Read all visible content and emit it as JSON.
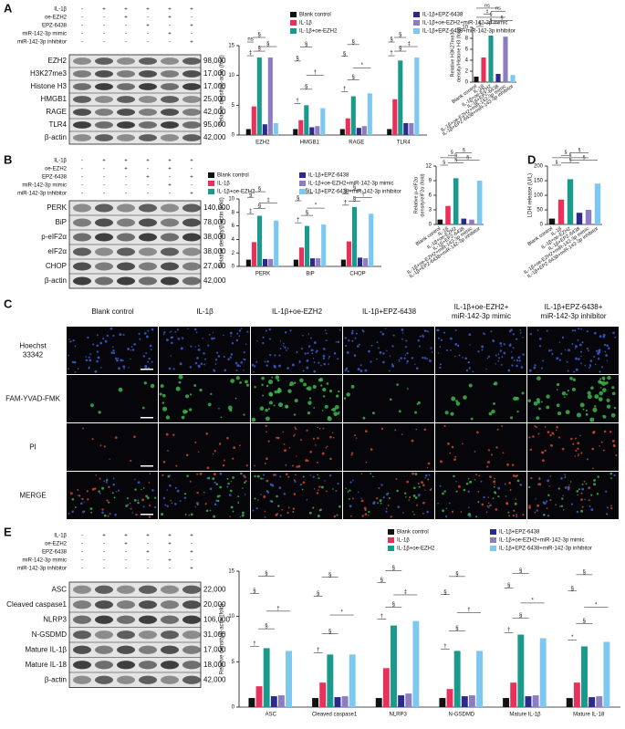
{
  "panel_labels": [
    "A",
    "B",
    "C",
    "D",
    "E"
  ],
  "blots": [
    {
      "treatments": [
        {
          "name": "IL-1β",
          "signs": [
            "-",
            "+",
            "+",
            "+",
            "+",
            "+"
          ]
        },
        {
          "name": "oe-EZH2",
          "signs": [
            "-",
            "-",
            "+",
            "-",
            "+",
            "-"
          ]
        },
        {
          "name": "EPZ-6438",
          "signs": [
            "-",
            "-",
            "-",
            "+",
            "-",
            "+"
          ]
        },
        {
          "name": "miR-142-3p mimic",
          "signs": [
            "-",
            "-",
            "-",
            "-",
            "+",
            "-"
          ]
        },
        {
          "name": "miR-142-3p inhibitor",
          "signs": [
            "-",
            "-",
            "-",
            "-",
            "-",
            "+"
          ]
        }
      ],
      "proteins": [
        {
          "name": "EZH2",
          "size": "98,000"
        },
        {
          "name": "H3K27me3",
          "size": "17,000"
        },
        {
          "name": "Histone H3",
          "size": "17,000"
        },
        {
          "name": "HMGB1",
          "size": "25,000"
        },
        {
          "name": "RAGE",
          "size": "42,000"
        },
        {
          "name": "TLR4",
          "size": "95,000"
        },
        {
          "name": "β-actin",
          "size": "42,000"
        }
      ]
    },
    {
      "treatments": [
        {
          "name": "IL-1β",
          "signs": [
            "-",
            "+",
            "+",
            "+",
            "+",
            "+"
          ]
        },
        {
          "name": "oe-EZH2",
          "signs": [
            "-",
            "-",
            "+",
            "-",
            "+",
            "-"
          ]
        },
        {
          "name": "EPZ-6438",
          "signs": [
            "-",
            "-",
            "-",
            "+",
            "-",
            "+"
          ]
        },
        {
          "name": "miR-142-3p mimic",
          "signs": [
            "-",
            "-",
            "-",
            "-",
            "+",
            "-"
          ]
        },
        {
          "name": "miR-142-3p inhibitor",
          "signs": [
            "-",
            "-",
            "-",
            "-",
            "-",
            "+"
          ]
        }
      ],
      "proteins": [
        {
          "name": "PERK",
          "size": "140,000"
        },
        {
          "name": "BiP",
          "size": "78,000"
        },
        {
          "name": "p-eIF2α",
          "size": "38,000"
        },
        {
          "name": "eIF2α",
          "size": "38,000"
        },
        {
          "name": "CHOP",
          "size": "27,000"
        },
        {
          "name": "β-actin",
          "size": "42,000"
        }
      ]
    },
    {
      "treatments": [
        {
          "name": "IL-1β",
          "signs": [
            "-",
            "+",
            "+",
            "+",
            "+",
            "+"
          ]
        },
        {
          "name": "oe-EZH2",
          "signs": [
            "-",
            "-",
            "+",
            "-",
            "+",
            "-"
          ]
        },
        {
          "name": "EPZ-6438",
          "signs": [
            "-",
            "-",
            "-",
            "+",
            "-",
            "+"
          ]
        },
        {
          "name": "miR-142-3p mimic",
          "signs": [
            "-",
            "-",
            "-",
            "-",
            "+",
            "-"
          ]
        },
        {
          "name": "miR-142-3p inhibitor",
          "signs": [
            "-",
            "-",
            "-",
            "-",
            "-",
            "+"
          ]
        }
      ],
      "proteins": [
        {
          "name": "ASC",
          "size": "22,000"
        },
        {
          "name": "Cleaved caspase1",
          "size": "20,000"
        },
        {
          "name": "NLRP3",
          "size": "106,000"
        },
        {
          "name": "N-GSDMD",
          "size": "31,000"
        },
        {
          "name": "Mature IL-1β",
          "size": "17,000"
        },
        {
          "name": "Mature IL-18",
          "size": "18,000"
        },
        {
          "name": "β-actin",
          "size": "42,000"
        }
      ]
    }
  ],
  "chart_data": [
    {
      "type": "grouped-bar",
      "ylabel": "Relative density/β-actin (fold)",
      "categories": [
        "EZH2",
        "HMGB1",
        "RAGE",
        "TLR4"
      ],
      "ylim": [
        0,
        15
      ],
      "yticks": [
        0,
        5,
        10,
        15
      ],
      "series": [
        {
          "name": "Blank control",
          "color": "#111111",
          "values": [
            1,
            1,
            1,
            1
          ]
        },
        {
          "name": "IL-1β",
          "color": "#e8305a",
          "values": [
            4.8,
            2.5,
            2.8,
            6
          ]
        },
        {
          "name": "IL-1β+oe-EZH2",
          "color": "#1a9a8c",
          "values": [
            13,
            5,
            6.5,
            12.5
          ]
        },
        {
          "name": "IL-1β+EPZ-6438",
          "color": "#2b2a8c",
          "values": [
            1.8,
            1.3,
            1.2,
            2
          ]
        },
        {
          "name": "IL-1β+oe-EZH2+miR-142-3p mimic",
          "color": "#8e7cc3",
          "values": [
            13,
            1.5,
            1.5,
            2
          ]
        },
        {
          "name": "IL-1β+EPZ-6438+miR-142-3p inhibitor",
          "color": "#7cc8f0",
          "values": [
            2,
            4.5,
            7,
            13
          ]
        }
      ],
      "annotations": [
        [
          "‡",
          "§",
          "§",
          "ns",
          "§"
        ],
        [
          "†",
          "§",
          "†",
          "§",
          "§"
        ],
        [
          "†",
          "§",
          "*",
          "§",
          "§"
        ],
        [
          "†",
          "§",
          "‡",
          "§",
          "§"
        ]
      ]
    },
    {
      "type": "bar",
      "ylabel": [
        "Relative H3K27me3",
        "density/Histone H3 (fold)"
      ],
      "categories": [
        "Blank control",
        "IL-1β",
        "IL-1β+oe-EZH2",
        "IL-1β+EPZ-6438",
        "IL-1β+oe-EZH2+miR-142-3p mimic",
        "IL-1β+EPZ-6438+miR-142-3p inhibitor"
      ],
      "ylim": [
        0,
        10
      ],
      "yticks": [
        0,
        2,
        4,
        6,
        8,
        10
      ],
      "values": [
        1,
        4.5,
        8.5,
        1.5,
        8.3,
        1.3
      ],
      "colors": [
        "#111111",
        "#e8305a",
        "#1a9a8c",
        "#2b2a8c",
        "#8e7cc3",
        "#7cc8f0"
      ],
      "annotations": [
        "§",
        "§",
        "§",
        "§",
        "‡",
        "ns",
        "ns"
      ]
    },
    {
      "type": "grouped-bar",
      "ylabel": "Relative density/β-actin (fold)",
      "categories": [
        "PERK",
        "BiP",
        "CHOP"
      ],
      "ylim": [
        0,
        10
      ],
      "yticks": [
        0,
        2,
        4,
        6,
        8,
        10
      ],
      "series": [
        {
          "name": "Blank control",
          "color": "#111111",
          "values": [
            1,
            1,
            1
          ]
        },
        {
          "name": "IL-1β",
          "color": "#e8305a",
          "values": [
            3.6,
            2.8,
            3.7
          ]
        },
        {
          "name": "IL-1β+oe-EZH2",
          "color": "#1a9a8c",
          "values": [
            7.5,
            6,
            8.8
          ]
        },
        {
          "name": "IL-1β+EPZ-6438",
          "color": "#2b2a8c",
          "values": [
            1.1,
            1.2,
            1.3
          ]
        },
        {
          "name": "IL-1β+oe-EZH2+miR-142-3p mimic",
          "color": "#8e7cc3",
          "values": [
            1.1,
            1.2,
            1.2
          ]
        },
        {
          "name": "IL-1β+EPZ-6438+miR-142-3p inhibitor",
          "color": "#7cc8f0",
          "values": [
            6.8,
            6.2,
            7.8
          ]
        }
      ],
      "annotations": [
        [
          "‡",
          "§",
          "‡",
          "§",
          "§"
        ],
        [
          "†",
          "§",
          "*",
          "§",
          "§"
        ],
        [
          "†",
          "§",
          "†",
          "§",
          "§"
        ]
      ]
    },
    {
      "type": "bar",
      "ylabel": [
        "Relative p-eIF2α",
        "density/eIF2α (fold)"
      ],
      "categories": [
        "Blank control",
        "IL-1β",
        "IL-1β+oe-EZH2",
        "IL-1β+EPZ-6438",
        "IL-1β+oe-EZH2+miR-142-3p mimic",
        "IL-1β+EPZ-6438+miR-142-3p inhibitor"
      ],
      "ylim": [
        0,
        12
      ],
      "yticks": [
        0,
        3,
        6,
        9,
        12
      ],
      "values": [
        1,
        3.8,
        9.5,
        1.2,
        1,
        9
      ],
      "colors": [
        "#111111",
        "#e8305a",
        "#1a9a8c",
        "#2b2a8c",
        "#8e7cc3",
        "#7cc8f0"
      ],
      "annotations": [
        "§",
        "§",
        "§",
        "§",
        "§",
        "§"
      ]
    },
    {
      "type": "bar",
      "ylabel": "LDH release (U/L)",
      "categories": [
        "Blank control",
        "IL-1β",
        "IL-1β+oe-EZH2",
        "IL-1β+EPZ-6438",
        "IL-1β+oe-EZH2+miR-142-3p mimic",
        "IL-1β+EPZ-6438+miR-142-3p inhibitor"
      ],
      "ylim": [
        0,
        200
      ],
      "yticks": [
        0,
        50,
        100,
        150,
        200
      ],
      "values": [
        20,
        85,
        155,
        40,
        50,
        140
      ],
      "colors": [
        "#111111",
        "#e8305a",
        "#1a9a8c",
        "#2b2a8c",
        "#8e7cc3",
        "#7cc8f0"
      ],
      "annotations": [
        "§",
        "§",
        "§",
        "§",
        "§",
        "§"
      ]
    },
    {
      "type": "grouped-bar",
      "ylabel": "Relative density/β-actin (fold)",
      "categories": [
        "ASC",
        "Cleaved caspase1",
        "NLRP3",
        "N-GSDMD",
        "Mature IL-1β",
        "Mature IL-18"
      ],
      "ylim": [
        0,
        15
      ],
      "yticks": [
        0,
        5,
        10,
        15
      ],
      "series": [
        {
          "name": "Blank control",
          "color": "#111111",
          "values": [
            1,
            1,
            1,
            1,
            1,
            1
          ]
        },
        {
          "name": "IL-1β",
          "color": "#e8305a",
          "values": [
            2.3,
            2.7,
            4.3,
            2,
            2.7,
            2.7
          ]
        },
        {
          "name": "IL-1β+oe-EZH2",
          "color": "#1a9a8c",
          "values": [
            6.5,
            5.8,
            9,
            6.2,
            8,
            6.7
          ]
        },
        {
          "name": "IL-1β+EPZ-6438",
          "color": "#2b2a8c",
          "values": [
            1.2,
            1.1,
            1.3,
            1.2,
            1.2,
            1.1
          ]
        },
        {
          "name": "IL-1β+oe-EZH2+miR-142-3p mimic",
          "color": "#8e7cc3",
          "values": [
            1.3,
            1.2,
            1.5,
            1.3,
            1.3,
            1.2
          ]
        },
        {
          "name": "IL-1β+EPZ-6438+miR-142-3p inhibitor",
          "color": "#7cc8f0",
          "values": [
            6.2,
            5.8,
            9.5,
            6.2,
            7.6,
            7.2
          ]
        }
      ],
      "annotations": [
        [
          "†",
          "§",
          "†",
          "§",
          "§"
        ],
        [
          "†",
          "§",
          "*",
          "§",
          "§"
        ],
        [
          "†",
          "§",
          "‡",
          "§",
          "§"
        ],
        [
          "†",
          "§",
          "†",
          "§",
          "§"
        ],
        [
          "†",
          "§",
          "*",
          "§",
          "§"
        ],
        [
          "*",
          "§",
          "*",
          "§",
          "§"
        ]
      ]
    }
  ],
  "microscopy": {
    "columns": [
      [
        "Blank control"
      ],
      [
        "IL-1β"
      ],
      [
        "IL-1β+oe-EZH2"
      ],
      [
        "IL-1β+EPZ-6438"
      ],
      [
        "IL-1β+oe-EZH2+",
        "miR-142-3p mimic"
      ],
      [
        "IL-1β+EPZ-6438+",
        "miR-142-3p inhibitor"
      ]
    ],
    "rows": [
      [
        "Hoechst",
        "33342"
      ],
      [
        "FAM-YVAD-FMK"
      ],
      [
        "PI"
      ],
      [
        "MERGE"
      ]
    ]
  }
}
